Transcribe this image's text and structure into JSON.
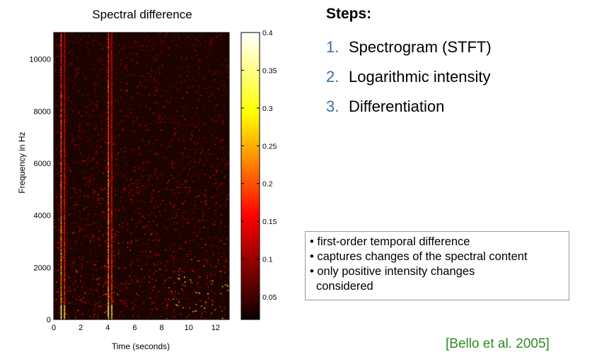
{
  "steps": {
    "title": "Steps:",
    "items": [
      {
        "num": "1.",
        "label": "Spectrogram (STFT)"
      },
      {
        "num": "2.",
        "label": "Logarithmic intensity"
      },
      {
        "num": "3.",
        "label": "Differentiation"
      }
    ]
  },
  "notes": {
    "lines": [
      "• first-order temporal difference",
      "• captures changes of the spectral content",
      "• only positive intensity changes",
      "considered"
    ]
  },
  "citation": "[Bello et al. 2005]",
  "colors": {
    "accent_number": "#3b6ea8",
    "citation": "#2e8b22",
    "plot_background": "#1b0400"
  },
  "chart_data": {
    "type": "heatmap",
    "title": "Spectral difference",
    "xlabel": "Time (seconds)",
    "ylabel": "Frequency in Hz",
    "xlim": [
      0,
      13
    ],
    "ylim": [
      0,
      11025
    ],
    "xticks": [
      0,
      2,
      4,
      6,
      8,
      10,
      12
    ],
    "yticks": [
      0,
      2000,
      4000,
      6000,
      8000,
      10000
    ],
    "colorbar": {
      "range": [
        0.02,
        0.4
      ],
      "ticks": [
        0.05,
        0.1,
        0.15,
        0.2,
        0.25,
        0.3,
        0.35,
        0.4
      ],
      "colormap": "hot"
    }
  }
}
